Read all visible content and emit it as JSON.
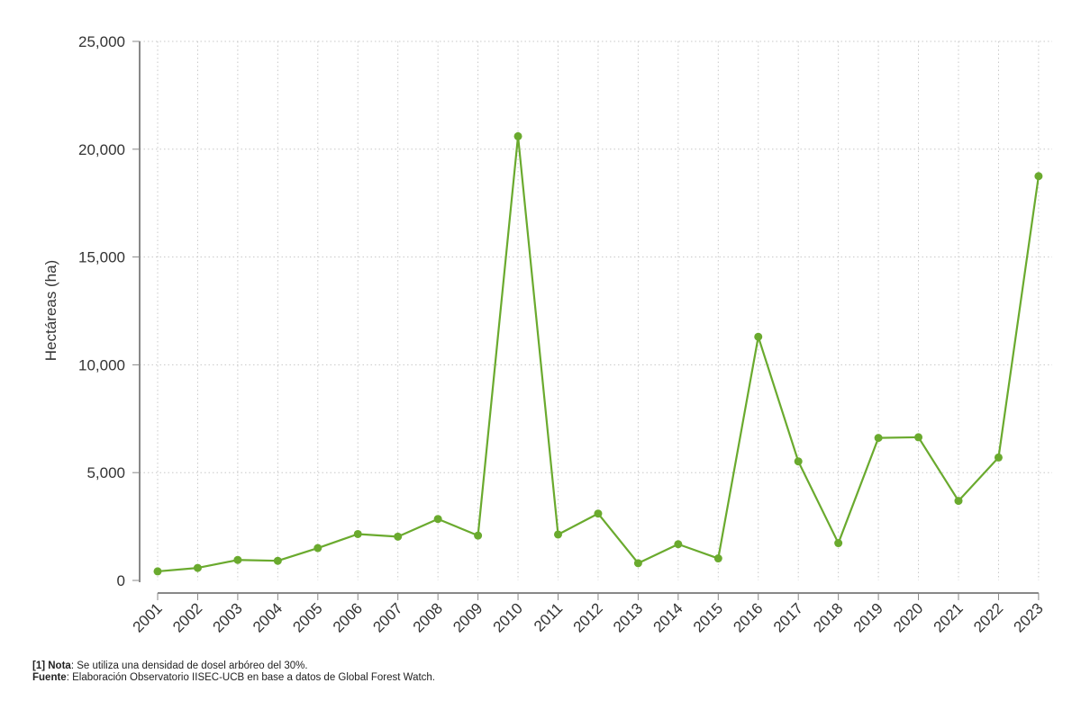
{
  "chart_data": {
    "type": "line",
    "ylabel": "Hectáreas (ha)",
    "x": [
      "2001",
      "2002",
      "2003",
      "2004",
      "2005",
      "2006",
      "2007",
      "2008",
      "2009",
      "2010",
      "2011",
      "2012",
      "2013",
      "2014",
      "2015",
      "2016",
      "2017",
      "2018",
      "2019",
      "2020",
      "2021",
      "2022",
      "2023"
    ],
    "series": [
      {
        "values": [
          420,
          580,
          950,
          910,
          1500,
          2150,
          2030,
          2850,
          2080,
          20600,
          2130,
          3100,
          800,
          1680,
          1020,
          11300,
          5520,
          1730,
          6610,
          6640,
          3690,
          5700,
          18750
        ],
        "color": "#6aaa2e"
      }
    ],
    "ylim": [
      0,
      25000
    ],
    "yticks": [
      "0",
      "5,000",
      "10,000",
      "15,000",
      "20,000",
      "25,000"
    ],
    "ytick_values": [
      0,
      5000,
      10000,
      15000,
      20000,
      25000
    ],
    "grid": true
  },
  "notes": {
    "nota_label": "[1] Nota",
    "nota_text": ": Se utiliza una densidad de dosel arbóreo del 30%.",
    "fuente_label": "Fuente",
    "fuente_text": ": Elaboración Observatorio IISEC-UCB en base a datos de Global Forest Watch."
  }
}
